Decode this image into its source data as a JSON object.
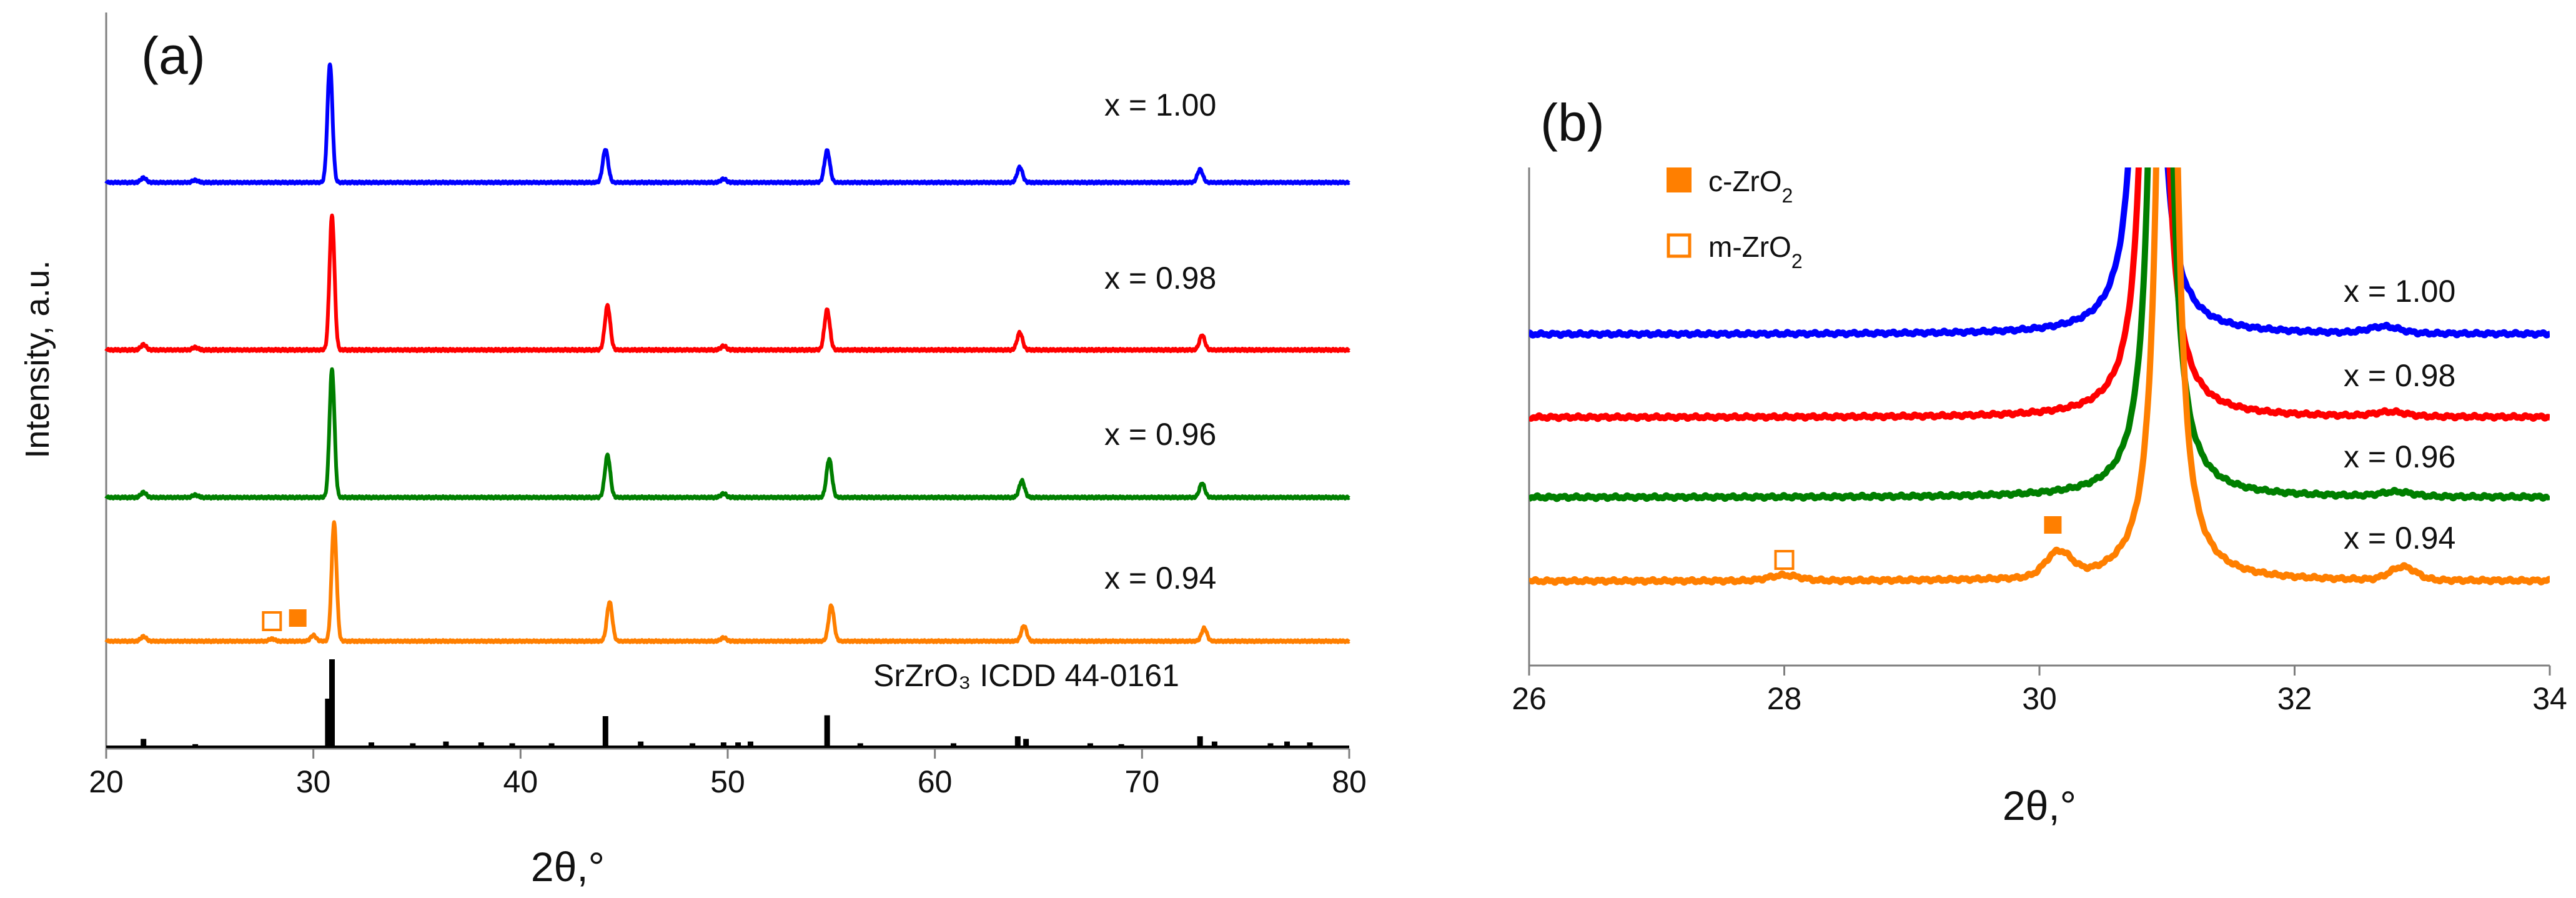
{
  "chart_data": [
    {
      "panel": "(a)",
      "type": "line",
      "xlabel": "2θ,°",
      "ylabel": "Intensity, a.u.",
      "xlim": [
        20,
        80
      ],
      "xticks": [
        "20",
        "30",
        "40",
        "50",
        "60",
        "70",
        "80"
      ],
      "series": [
        {
          "name": "x = 1.00",
          "color": "#0000ff",
          "peaks": [
            [
              21.8,
              0.04
            ],
            [
              24.3,
              0.02
            ],
            [
              30.8,
              1.0
            ],
            [
              44.1,
              0.28
            ],
            [
              49.8,
              0.03
            ],
            [
              54.8,
              0.27
            ],
            [
              64.1,
              0.13
            ],
            [
              72.8,
              0.11
            ]
          ]
        },
        {
          "name": "x = 0.98",
          "color": "#ff0000",
          "peaks": [
            [
              21.8,
              0.04
            ],
            [
              24.3,
              0.02
            ],
            [
              30.9,
              1.0
            ],
            [
              44.2,
              0.33
            ],
            [
              49.8,
              0.03
            ],
            [
              54.8,
              0.3
            ],
            [
              64.1,
              0.13
            ],
            [
              72.9,
              0.11
            ]
          ]
        },
        {
          "name": "x = 0.96",
          "color": "#007f00",
          "peaks": [
            [
              21.8,
              0.04
            ],
            [
              24.3,
              0.02
            ],
            [
              30.9,
              1.0
            ],
            [
              44.2,
              0.33
            ],
            [
              49.8,
              0.03
            ],
            [
              54.9,
              0.3
            ],
            [
              64.2,
              0.13
            ],
            [
              72.9,
              0.11
            ]
          ]
        },
        {
          "name": "x = 0.94",
          "color": "#ff7f00",
          "peaks": [
            [
              21.8,
              0.04
            ],
            [
              28.0,
              0.02
            ],
            [
              30.0,
              0.05
            ],
            [
              31.0,
              1.0
            ],
            [
              44.3,
              0.33
            ],
            [
              49.8,
              0.03
            ],
            [
              55.0,
              0.3
            ],
            [
              64.3,
              0.13
            ],
            [
              73.0,
              0.11
            ]
          ]
        }
      ],
      "reference": {
        "name": "SrZrO₃ ICDD 44-0161",
        "color": "#000000",
        "lines": [
          [
            21.8,
            0.09
          ],
          [
            24.3,
            0.03
          ],
          [
            30.7,
            0.55
          ],
          [
            30.9,
            1.0
          ],
          [
            32.8,
            0.05
          ],
          [
            34.8,
            0.04
          ],
          [
            36.4,
            0.06
          ],
          [
            38.1,
            0.05
          ],
          [
            39.6,
            0.04
          ],
          [
            41.5,
            0.04
          ],
          [
            44.1,
            0.35
          ],
          [
            45.8,
            0.06
          ],
          [
            48.3,
            0.04
          ],
          [
            49.8,
            0.05
          ],
          [
            50.5,
            0.05
          ],
          [
            51.1,
            0.06
          ],
          [
            54.8,
            0.36
          ],
          [
            56.4,
            0.04
          ],
          [
            60.9,
            0.04
          ],
          [
            64.0,
            0.12
          ],
          [
            64.4,
            0.09
          ],
          [
            67.5,
            0.04
          ],
          [
            69.0,
            0.03
          ],
          [
            72.8,
            0.12
          ],
          [
            73.5,
            0.06
          ],
          [
            76.2,
            0.04
          ],
          [
            77.0,
            0.06
          ],
          [
            78.1,
            0.05
          ]
        ]
      },
      "markers": [
        {
          "symbol": "m-ZrO2",
          "filled": false,
          "x": 28.0
        },
        {
          "symbol": "c-ZrO2",
          "filled": true,
          "x": 30.0
        }
      ]
    },
    {
      "panel": "(b)",
      "type": "line",
      "xlabel": "2θ,°",
      "xlim": [
        26,
        34
      ],
      "xticks": [
        "26",
        "28",
        "30",
        "32",
        "34"
      ],
      "legend": [
        {
          "label": "c-ZrO",
          "sub": "2",
          "filled": true,
          "color": "#ff7f00"
        },
        {
          "label": "m-ZrO",
          "sub": "2",
          "filled": false,
          "color": "#ff7f00"
        }
      ],
      "series": [
        {
          "name": "x = 1.00",
          "color": "#0000ff",
          "center": 30.85,
          "satellites": [
            [
              32.7,
              0.3
            ]
          ]
        },
        {
          "name": "x = 0.98",
          "color": "#ff0000",
          "center": 30.9,
          "satellites": [
            [
              32.75,
              0.2
            ]
          ]
        },
        {
          "name": "x = 0.96",
          "color": "#007f00",
          "center": 30.95,
          "satellites": [
            [
              32.8,
              0.2
            ]
          ]
        },
        {
          "name": "x = 0.94",
          "color": "#ff7f00",
          "center": 31.0,
          "satellites": [
            [
              28.0,
              0.25
            ],
            [
              30.15,
              1.1
            ],
            [
              32.85,
              0.6
            ]
          ]
        }
      ],
      "markers": [
        {
          "symbol": "m-ZrO2",
          "filled": false,
          "x": 28.0
        },
        {
          "symbol": "c-ZrO2",
          "filled": true,
          "x": 30.1
        }
      ]
    }
  ]
}
